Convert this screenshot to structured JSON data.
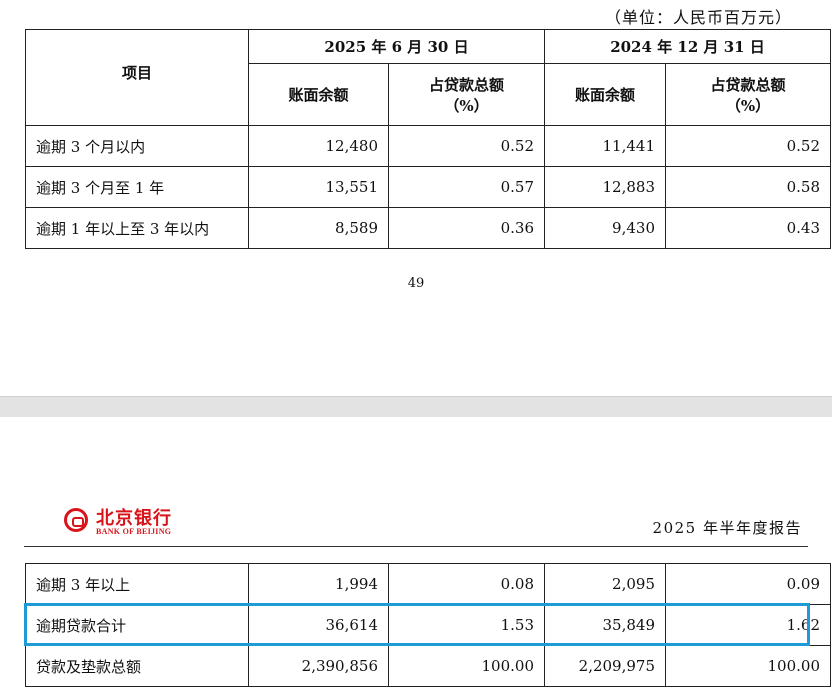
{
  "unit_note": "（单位：人民币百万元）",
  "top_table": {
    "item_header": "项目",
    "date1": "2025 年 6 月 30 日",
    "date2": "2024 年 12 月 31 日",
    "col_balance": "账面余额",
    "col_pct_line1": "占贷款总额",
    "col_pct_line2": "（%）",
    "rows": [
      {
        "label": "逾期 3 个月以内",
        "v1": "12,480",
        "p1": "0.52",
        "v2": "11,441",
        "p2": "0.52"
      },
      {
        "label": "逾期 3 个月至 1 年",
        "v1": "13,551",
        "p1": "0.57",
        "v2": "12,883",
        "p2": "0.58"
      },
      {
        "label": "逾期 1 年以上至 3 年以内",
        "v1": "8,589",
        "p1": "0.36",
        "v2": "9,430",
        "p2": "0.43"
      }
    ]
  },
  "page_number": "49",
  "logo": {
    "cn": "北京银行",
    "en": "BANK OF BEIJING"
  },
  "report_title": "2025 年半年度报告",
  "bottom_table": {
    "rows": [
      {
        "label": "逾期 3 年以上",
        "v1": "1,994",
        "p1": "0.08",
        "v2": "2,095",
        "p2": "0.09"
      },
      {
        "label": "逾期贷款合计",
        "v1": "36,614",
        "p1": "1.53",
        "v2": "35,849",
        "p2": "1.62"
      },
      {
        "label": "贷款及垫款总额",
        "v1": "2,390,856",
        "p1": "100.00",
        "v2": "2,209,975",
        "p2": "100.00"
      }
    ]
  },
  "colors": {
    "highlight": "#1e9bd7",
    "logo_red": "#d8141a"
  }
}
